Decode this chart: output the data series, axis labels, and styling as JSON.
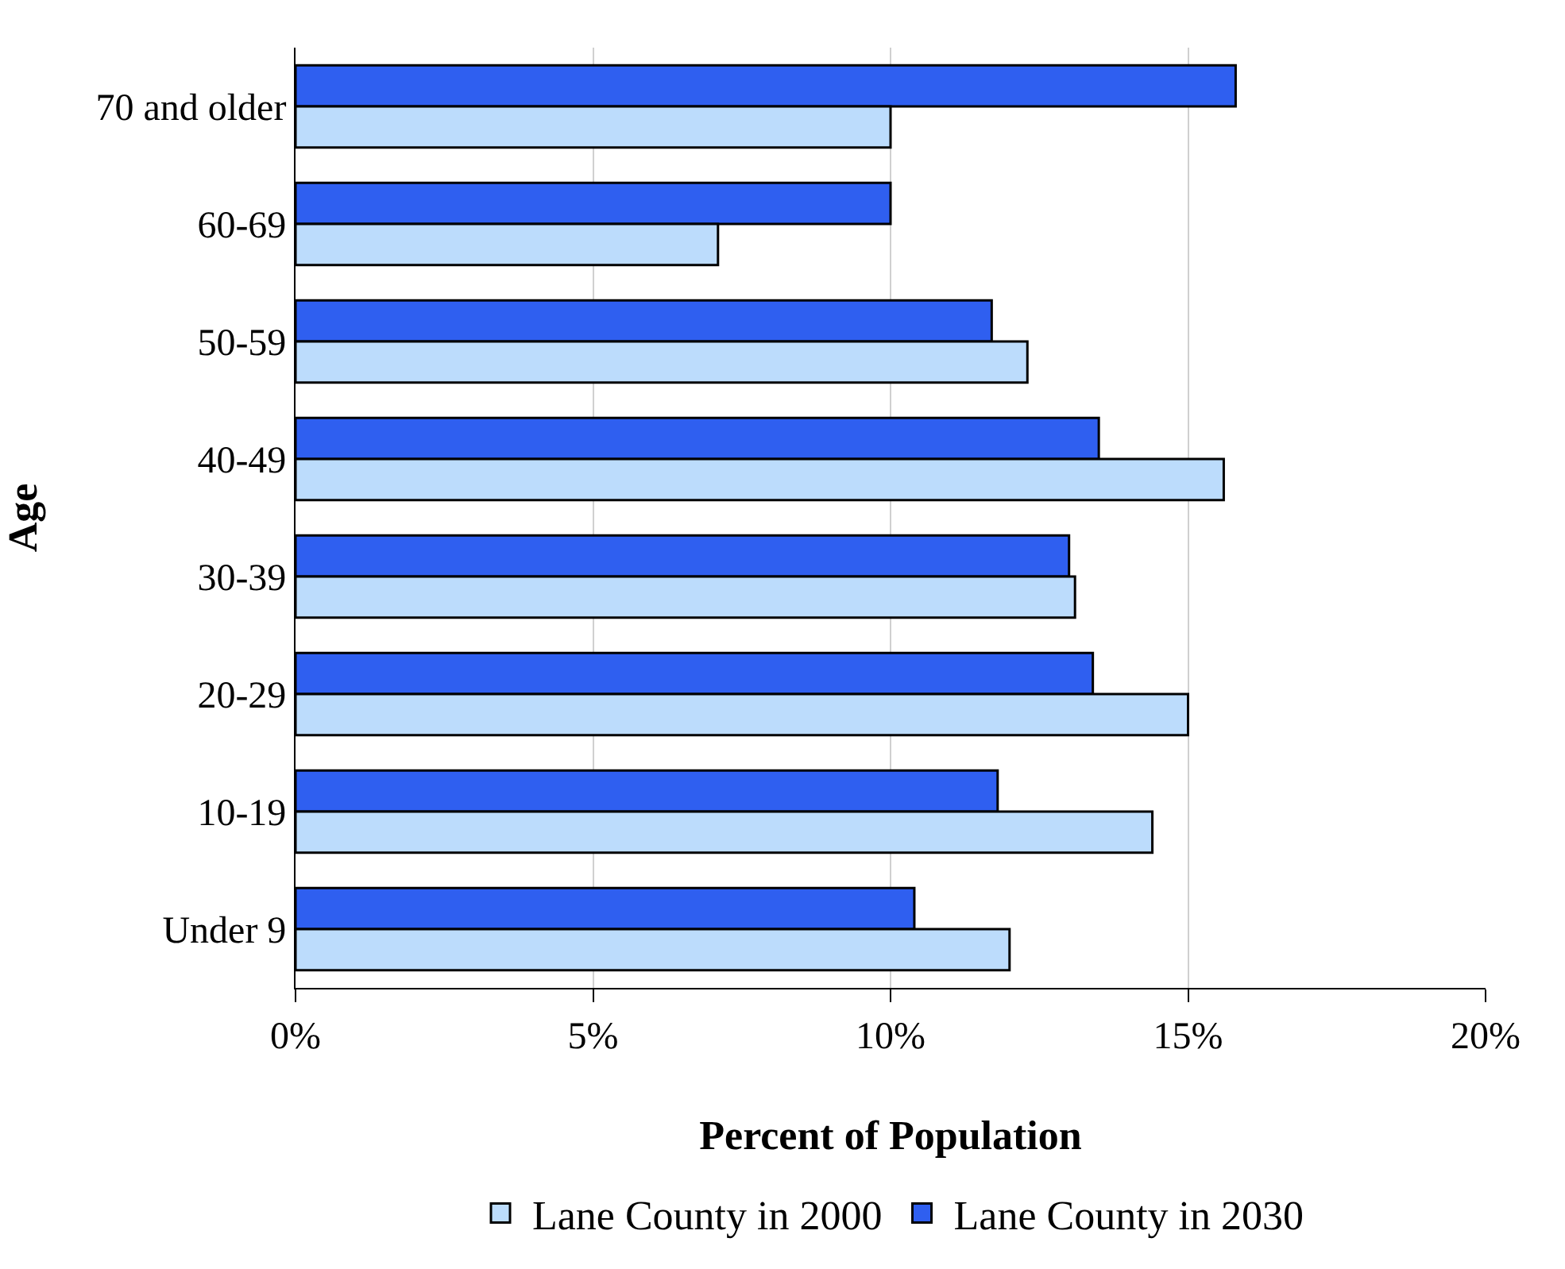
{
  "chart_data": {
    "type": "bar",
    "orientation": "horizontal",
    "xlabel": "Percent of Population",
    "ylabel": "Age",
    "categories": [
      "70 and older",
      "60-69",
      "50-59",
      "40-49",
      "30-39",
      "20-29",
      "10-19",
      "Under 9"
    ],
    "series": [
      {
        "name": "Lane County in 2000",
        "color": "#bcdcfc",
        "values": [
          10.0,
          7.1,
          12.3,
          15.6,
          13.1,
          15.0,
          14.4,
          12.0
        ]
      },
      {
        "name": "Lane County in 2030",
        "color": "#2f5ff0",
        "values": [
          15.8,
          10.0,
          11.7,
          13.5,
          13.0,
          13.4,
          11.8,
          10.4
        ]
      }
    ],
    "xlim": [
      0,
      20
    ],
    "xticks": [
      {
        "value": 0,
        "label": "0%"
      },
      {
        "value": 5,
        "label": "5%"
      },
      {
        "value": 10,
        "label": "10%"
      },
      {
        "value": 15,
        "label": "15%"
      },
      {
        "value": 20,
        "label": "20%"
      }
    ],
    "grid": "x",
    "legend": "bottom"
  }
}
